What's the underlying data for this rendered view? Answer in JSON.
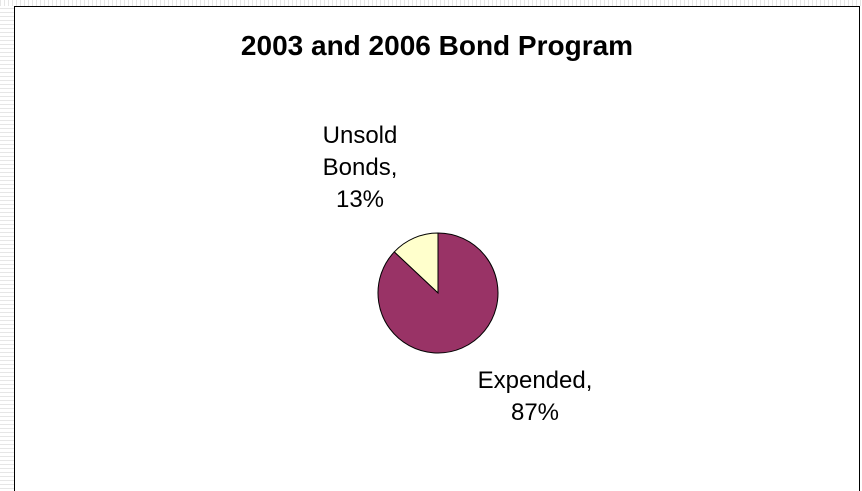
{
  "chart_data": {
    "type": "pie",
    "title": "2003 and 2006 Bond Program",
    "slices": [
      {
        "label": "Unsold Bonds,",
        "percent_text": "13%",
        "value": 13,
        "color": "#FFFFCC"
      },
      {
        "label": "Expended,",
        "percent_text": "87%",
        "value": 87,
        "color": "#993366"
      }
    ],
    "start_angle_deg": -90,
    "direction": "counterclockwise-for-first-slice",
    "stroke_color": "#000000"
  }
}
